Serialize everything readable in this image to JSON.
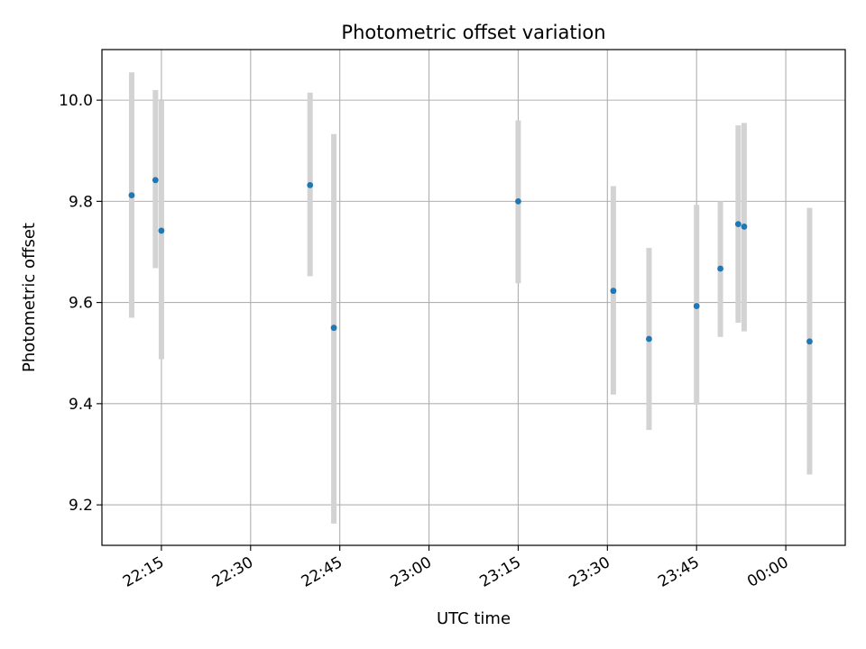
{
  "chart_data": {
    "type": "scatter",
    "title": "Photometric offset variation",
    "xlabel": "UTC time",
    "ylabel": "Photometric offset",
    "xlim": [
      "22:05",
      "00:10"
    ],
    "ylim": [
      9.12,
      10.1
    ],
    "xticks": [
      "22:15",
      "22:30",
      "22:45",
      "23:00",
      "23:15",
      "23:30",
      "23:45",
      "00:00"
    ],
    "yticks": [
      9.2,
      9.4,
      9.6,
      9.8,
      10.0
    ],
    "ytick_labels": [
      "9.2",
      "9.4",
      "9.6",
      "9.8",
      "10.0"
    ],
    "grid": true,
    "points": [
      {
        "x": "22:10",
        "y": 9.812,
        "yerr_low": 9.57,
        "yerr_high": 10.055
      },
      {
        "x": "22:14",
        "y": 9.842,
        "yerr_low": 9.668,
        "yerr_high": 10.02
      },
      {
        "x": "22:15",
        "y": 9.742,
        "yerr_low": 9.488,
        "yerr_high": 10.0
      },
      {
        "x": "22:40",
        "y": 9.832,
        "yerr_low": 9.652,
        "yerr_high": 10.015
      },
      {
        "x": "22:44",
        "y": 9.55,
        "yerr_low": 9.163,
        "yerr_high": 9.933
      },
      {
        "x": "23:15",
        "y": 9.8,
        "yerr_low": 9.638,
        "yerr_high": 9.96
      },
      {
        "x": "23:31",
        "y": 9.623,
        "yerr_low": 9.418,
        "yerr_high": 9.83
      },
      {
        "x": "23:37",
        "y": 9.528,
        "yerr_low": 9.348,
        "yerr_high": 9.708
      },
      {
        "x": "23:45",
        "y": 9.593,
        "yerr_low": 9.398,
        "yerr_high": 9.793
      },
      {
        "x": "23:49",
        "y": 9.667,
        "yerr_low": 9.532,
        "yerr_high": 9.8
      },
      {
        "x": "23:52",
        "y": 9.755,
        "yerr_low": 9.56,
        "yerr_high": 9.95
      },
      {
        "x": "23:53",
        "y": 9.75,
        "yerr_low": 9.543,
        "yerr_high": 9.955
      },
      {
        "x": "00:04",
        "y": 9.523,
        "yerr_low": 9.26,
        "yerr_high": 9.787
      }
    ],
    "colors": {
      "point": "#1f77b4",
      "errorbar": "#d3d3d3",
      "grid": "#b0b0b0",
      "axes": "#000000"
    }
  }
}
